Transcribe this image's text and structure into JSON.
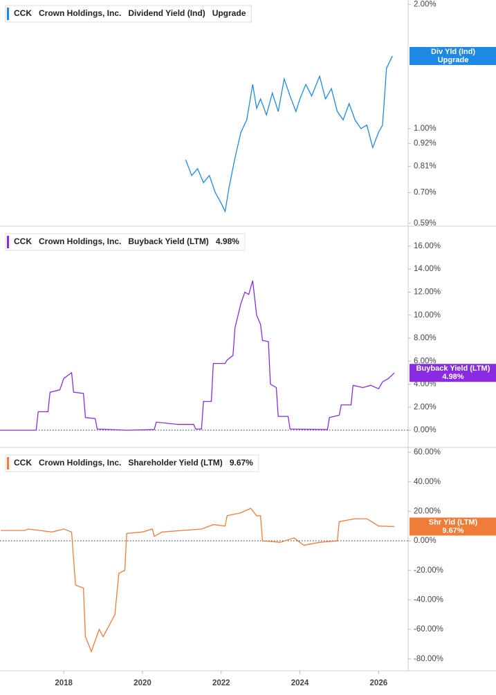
{
  "chart_data": [
    {
      "type": "line",
      "ticker": "CCK",
      "company": "Crown Holdings, Inc.",
      "header_value": "Upgrade",
      "badge": [
        "Div Yld (Ind)",
        "Upgrade"
      ],
      "log_scale": true,
      "xlim": [
        2016.38,
        2026.75
      ],
      "ylim": [
        0.585,
        2.05
      ],
      "yticks": [
        {
          "value": 2.0,
          "label": "2.00%"
        },
        {
          "value": 1.0,
          "label": "1.00%"
        },
        {
          "value": 0.92,
          "label": "0.92%"
        },
        {
          "value": 0.81,
          "label": "0.81%"
        },
        {
          "value": 0.7,
          "label": "0.70%"
        },
        {
          "value": 0.59,
          "label": "0.59%"
        }
      ],
      "x": [
        2021.1,
        2021.25,
        2021.4,
        2021.55,
        2021.7,
        2021.85,
        2022.0,
        2022.1,
        2022.2,
        2022.35,
        2022.5,
        2022.65,
        2022.8,
        2022.9,
        2023.0,
        2023.15,
        2023.3,
        2023.45,
        2023.6,
        2023.75,
        2023.9,
        2024.0,
        2024.15,
        2024.3,
        2024.5,
        2024.65,
        2024.8,
        2024.95,
        2025.1,
        2025.25,
        2025.4,
        2025.55,
        2025.7,
        2025.85,
        2026.0,
        2026.1,
        2026.2,
        2026.35
      ],
      "series": [
        {
          "name": "Dividend Yield (Ind)",
          "color": "#1e88e5",
          "values": [
            0.84,
            0.77,
            0.8,
            0.74,
            0.77,
            0.7,
            0.66,
            0.63,
            0.72,
            0.85,
            0.98,
            1.05,
            1.28,
            1.12,
            1.18,
            1.08,
            1.22,
            1.1,
            1.32,
            1.2,
            1.1,
            1.18,
            1.28,
            1.2,
            1.34,
            1.18,
            1.25,
            1.1,
            1.05,
            1.15,
            1.05,
            1.0,
            1.02,
            0.9,
            0.98,
            1.02,
            1.4,
            1.5
          ]
        }
      ]
    },
    {
      "type": "line",
      "ticker": "CCK",
      "company": "Crown Holdings, Inc.",
      "header_value": "4.98%",
      "badge": [
        "Buyback Yield (LTM)",
        "4.98%"
      ],
      "log_scale": false,
      "zero_line": true,
      "xlim": [
        2016.38,
        2026.75
      ],
      "ylim": [
        -1.56,
        17.56
      ],
      "yticks": [
        {
          "value": 0,
          "label": "0.00%"
        },
        {
          "value": 2,
          "label": "2.00%"
        },
        {
          "value": 4,
          "label": "4.00%"
        },
        {
          "value": 6,
          "label": "6.00%"
        },
        {
          "value": 8,
          "label": "8.00%"
        },
        {
          "value": 10,
          "label": "10.00%"
        },
        {
          "value": 12,
          "label": "12.00%"
        },
        {
          "value": 14,
          "label": "14.00%"
        },
        {
          "value": 16,
          "label": "16.00%"
        }
      ],
      "x": [
        2016.4,
        2017.3,
        2017.35,
        2017.6,
        2017.65,
        2017.9,
        2018.0,
        2018.2,
        2018.25,
        2018.5,
        2018.55,
        2018.8,
        2018.85,
        2019.6,
        2020.3,
        2020.35,
        2020.9,
        2021.3,
        2021.35,
        2021.5,
        2021.55,
        2021.75,
        2021.8,
        2022.1,
        2022.15,
        2022.3,
        2022.35,
        2022.5,
        2022.6,
        2022.7,
        2022.8,
        2022.85,
        2022.9,
        2023.0,
        2023.05,
        2023.2,
        2023.25,
        2023.4,
        2023.45,
        2023.7,
        2023.75,
        2024.7,
        2024.75,
        2025.0,
        2025.05,
        2025.3,
        2025.35,
        2025.6,
        2025.8,
        2026.0,
        2026.1,
        2026.25,
        2026.4
      ],
      "series": [
        {
          "name": "Buyback Yield (LTM)",
          "color": "#8a2be2",
          "values": [
            0,
            0,
            1.6,
            1.6,
            3.3,
            3.5,
            4.5,
            5.0,
            3.3,
            3.2,
            1.1,
            1.0,
            0.1,
            0,
            0.05,
            0.7,
            0.5,
            0.5,
            0.1,
            0.1,
            2.5,
            2.5,
            5.8,
            5.8,
            6.1,
            6.5,
            8.9,
            11.0,
            12.0,
            11.8,
            13.0,
            11.5,
            10.0,
            9.2,
            7.8,
            7.7,
            4.0,
            3.7,
            1.2,
            1.2,
            0.1,
            0.05,
            1.1,
            1.3,
            2.2,
            2.2,
            3.9,
            3.7,
            3.9,
            3.6,
            4.2,
            4.5,
            4.98
          ]
        }
      ]
    },
    {
      "type": "line",
      "ticker": "CCK",
      "company": "Crown Holdings, Inc.",
      "header_value": "9.67%",
      "badge": [
        "Shr Yld (LTM)",
        "9.67%"
      ],
      "log_scale": false,
      "zero_line": true,
      "xlim": [
        2016.38,
        2026.75
      ],
      "ylim": [
        -88.1,
        61.9
      ],
      "xticks": [
        2018,
        2020,
        2022,
        2024,
        2026
      ],
      "yticks": [
        {
          "value": -80,
          "label": "-80.00%"
        },
        {
          "value": -60,
          "label": "-60.00%"
        },
        {
          "value": -40,
          "label": "-40.00%"
        },
        {
          "value": -20,
          "label": "-20.00%"
        },
        {
          "value": 0,
          "label": "0.00%"
        },
        {
          "value": 20,
          "label": "20.00%"
        },
        {
          "value": 40,
          "label": "40.00%"
        },
        {
          "value": 60,
          "label": "60.00%"
        }
      ],
      "x": [
        2016.4,
        2017.0,
        2017.1,
        2017.7,
        2018.0,
        2018.2,
        2018.3,
        2018.5,
        2018.55,
        2018.7,
        2018.9,
        2019.0,
        2019.2,
        2019.3,
        2019.4,
        2019.55,
        2019.6,
        2020.0,
        2020.25,
        2020.3,
        2020.5,
        2021.0,
        2021.5,
        2021.8,
        2022.1,
        2022.15,
        2022.5,
        2022.75,
        2022.9,
        2023.0,
        2023.05,
        2023.5,
        2023.85,
        2024.1,
        2024.5,
        2024.95,
        2025.0,
        2025.4,
        2025.7,
        2026.0,
        2026.4
      ],
      "series": [
        {
          "name": "Shareholder Yield (LTM)",
          "color": "#f07c3a",
          "values": [
            7,
            7,
            8,
            6,
            8,
            6,
            -30,
            -32,
            -65,
            -75,
            -60,
            -65,
            -55,
            -50,
            -22,
            -20,
            5,
            6,
            8,
            3,
            6,
            7,
            8,
            11,
            10,
            17,
            19,
            22,
            17,
            17,
            0,
            -1,
            2,
            -3,
            -1,
            0,
            13,
            15,
            15,
            10,
            9.67
          ]
        }
      ]
    }
  ]
}
